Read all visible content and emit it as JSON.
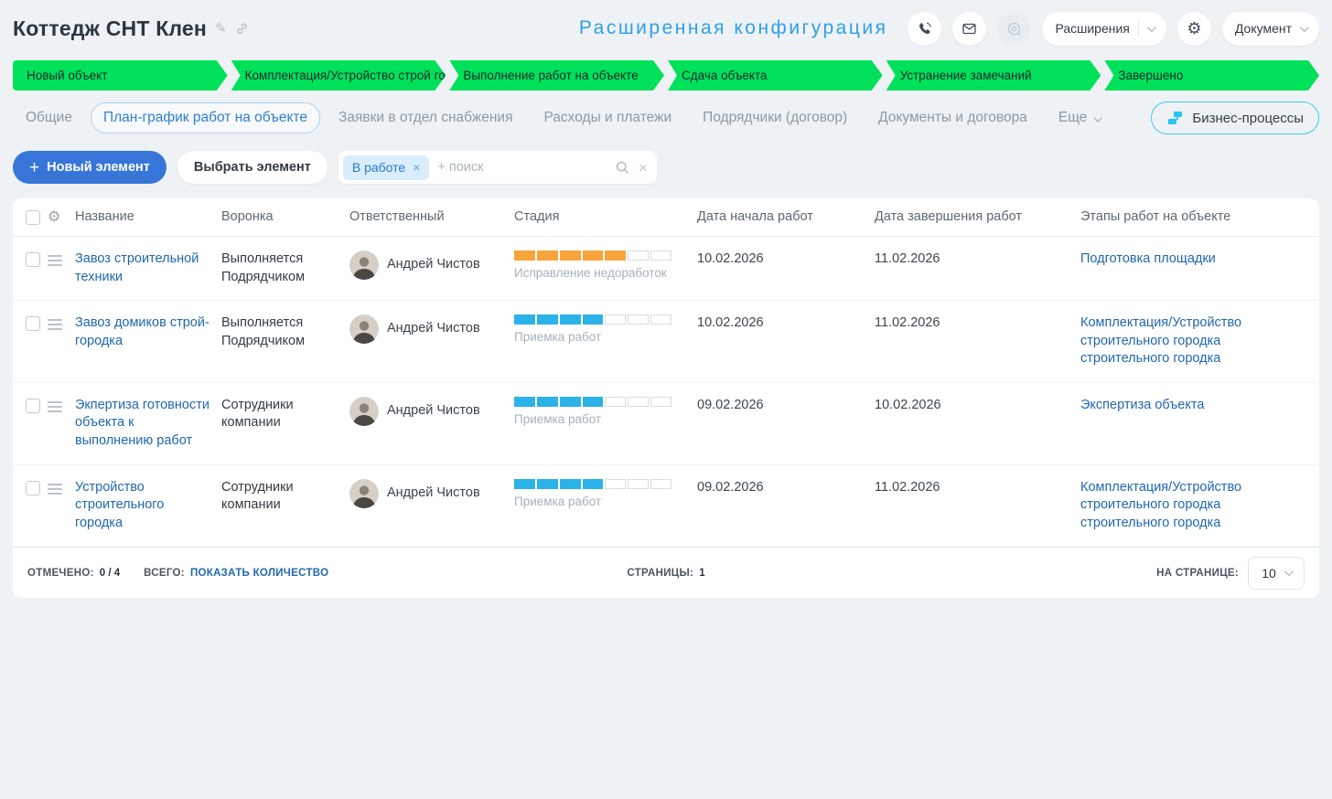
{
  "header": {
    "title": "Коттедж СНТ Клен",
    "config_label": "Расширенная конфигурация",
    "extensions_label": "Расширения",
    "document_label": "Документ"
  },
  "icons": {
    "gear": "⚙",
    "pencil": "✎",
    "plus": "+",
    "close": "×"
  },
  "stages": [
    {
      "label": "Новый объект",
      "color": "#00e15b"
    },
    {
      "label": "Комплектация/Устройство строй го...",
      "color": "#00e15b"
    },
    {
      "label": "Выполнение работ на объекте",
      "color": "#00e15b"
    },
    {
      "label": "Сдача объекта",
      "color": "#00e15b"
    },
    {
      "label": "Устранение замечаний",
      "color": "#00e15b"
    },
    {
      "label": "Завершено",
      "color": "#00e15b"
    }
  ],
  "tabs": [
    {
      "label": "Общие",
      "active": false,
      "chevron": false
    },
    {
      "label": "План-график работ на объекте",
      "active": true,
      "chevron": false
    },
    {
      "label": "Заявки в отдел снабжения",
      "active": false,
      "chevron": false
    },
    {
      "label": "Расходы и платежи",
      "active": false,
      "chevron": false
    },
    {
      "label": "Подрядчики (договор)",
      "active": false,
      "chevron": false
    },
    {
      "label": "Документы и договора",
      "active": false,
      "chevron": false
    },
    {
      "label": "Еще",
      "active": false,
      "chevron": true
    }
  ],
  "bp_button_label": "Бизнес-процессы",
  "toolbar": {
    "new_item": "Новый элемент",
    "select_item": "Выбрать элемент",
    "filter_chip": "В работе",
    "search_placeholder": "+ поиск"
  },
  "table": {
    "columns": [
      "Название",
      "Воронка",
      "Ответственный",
      "Стадия",
      "Дата начала работ",
      "Дата завершения работ",
      "Этапы работ на объекте"
    ],
    "rows": [
      {
        "name": "Завоз строительной техники",
        "funnel": "Выполняется Подрядчиком",
        "responsible": "Андрей Чистов",
        "stage_label": "Исправление недоработок",
        "progress_filled": 5,
        "progress_total": 7,
        "progress_color": "#f6a43b",
        "date_start": "10.02.2026",
        "date_end": "11.02.2026",
        "stages_link": "Подготовка площадки"
      },
      {
        "name": "Завоз домиков строй-городка",
        "funnel": "Выполняется Подрядчиком",
        "responsible": "Андрей Чистов",
        "stage_label": "Приемка работ",
        "progress_filled": 4,
        "progress_total": 7,
        "progress_color": "#2bb2e8",
        "date_start": "10.02.2026",
        "date_end": "11.02.2026",
        "stages_link": "Комплектация/Устройство строительного городка строительного городка"
      },
      {
        "name": "Экпертиза готовности объекта к выполнению работ",
        "funnel": "Сотрудники компании",
        "responsible": "Андрей Чистов",
        "stage_label": "Приемка работ",
        "progress_filled": 4,
        "progress_total": 7,
        "progress_color": "#2bb2e8",
        "date_start": "09.02.2026",
        "date_end": "10.02.2026",
        "stages_link": "Экспертиза объекта"
      },
      {
        "name": "Устройство строительного городка",
        "funnel": "Сотрудники компании",
        "responsible": "Андрей Чистов",
        "stage_label": "Приемка работ",
        "progress_filled": 4,
        "progress_total": 7,
        "progress_color": "#2bb2e8",
        "date_start": "09.02.2026",
        "date_end": "11.02.2026",
        "stages_link": "Комплектация/Устройство строительного городка строительного городка"
      }
    ]
  },
  "footer": {
    "checked_label": "ОТМЕЧЕНО:",
    "checked_value": "0 / 4",
    "total_label": "ВСЕГО:",
    "total_link": "ПОКАЗАТЬ КОЛИЧЕСТВО",
    "pages_label": "СТРАНИЦЫ:",
    "pages_value": "1",
    "per_page_label": "НА СТРАНИЦЕ:",
    "per_page_value": "10"
  }
}
